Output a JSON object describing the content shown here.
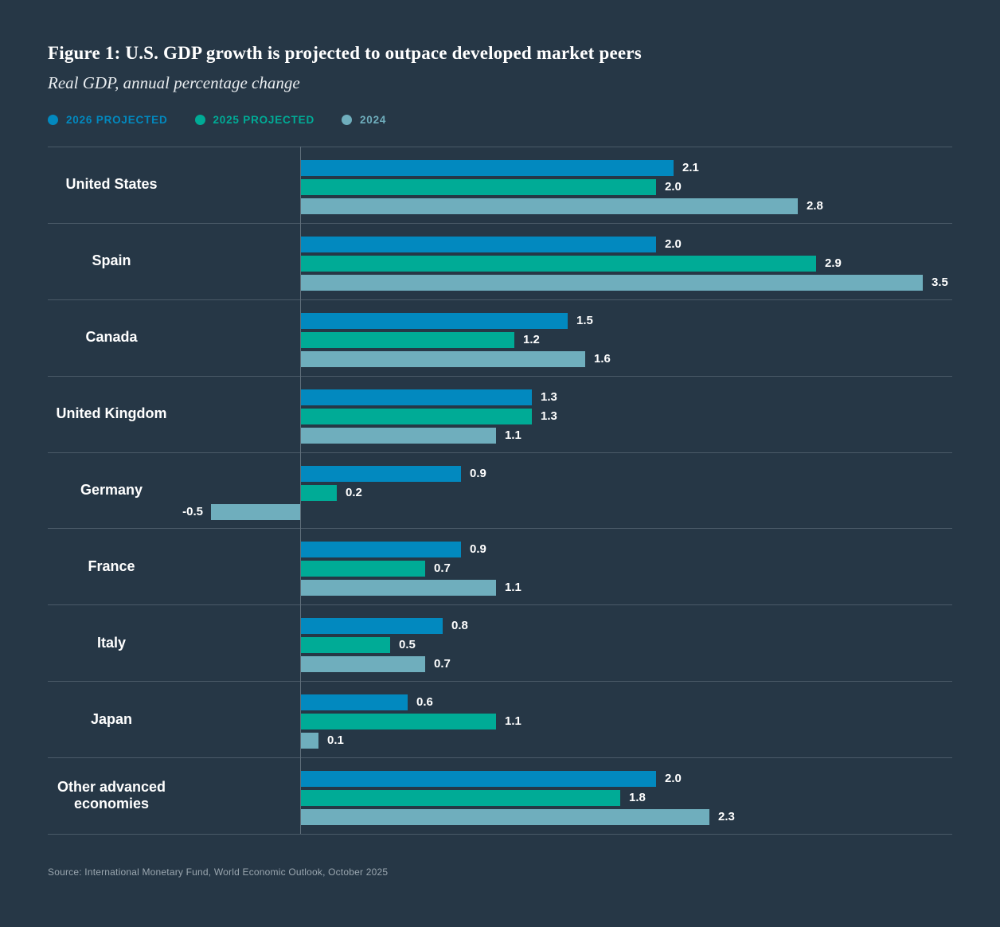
{
  "page": {
    "title": "Figure 1: U.S. GDP growth is projected to outpace developed market peers",
    "subtitle": "Real GDP, annual percentage change",
    "source": "Source: International Monetary Fund, World Economic Outlook, October 2025"
  },
  "colors": {
    "background": "#263746",
    "grid_line": "#4a5a68",
    "axis_line": "#5f6e7a",
    "value_label_text": "#ffffff",
    "country_label_text": "#ffffff",
    "source_text": "#9aa6af"
  },
  "chart_data": {
    "type": "bar",
    "orientation": "horizontal",
    "title": "Figure 1: U.S. GDP growth is projected to outpace developed market peers",
    "subtitle": "Real GDP, annual percentage change",
    "legend_position": "top",
    "grid": false,
    "value_labels_shown": true,
    "value_label_format": "0.1f",
    "xlim": [
      -0.5,
      3.5
    ],
    "categories": [
      "United States",
      "Spain",
      "Canada",
      "United Kingdom",
      "Germany",
      "France",
      "Italy",
      "Japan",
      "Other advanced economies"
    ],
    "series": [
      {
        "id": "2026-projected",
        "name": "2026 PROJECTED",
        "color": "#0289bf",
        "values": [
          2.1,
          2.0,
          1.5,
          1.3,
          0.9,
          0.9,
          0.8,
          0.6,
          2.0
        ]
      },
      {
        "id": "2025-projected",
        "name": "2025 PROJECTED",
        "color": "#00ab96",
        "values": [
          2.0,
          2.9,
          1.2,
          1.3,
          0.2,
          0.7,
          0.5,
          1.1,
          1.8
        ]
      },
      {
        "id": "2024",
        "name": "2024",
        "color": "#6faebd",
        "values": [
          2.8,
          3.5,
          1.6,
          1.1,
          -0.5,
          1.1,
          0.7,
          0.1,
          2.3
        ]
      }
    ]
  }
}
